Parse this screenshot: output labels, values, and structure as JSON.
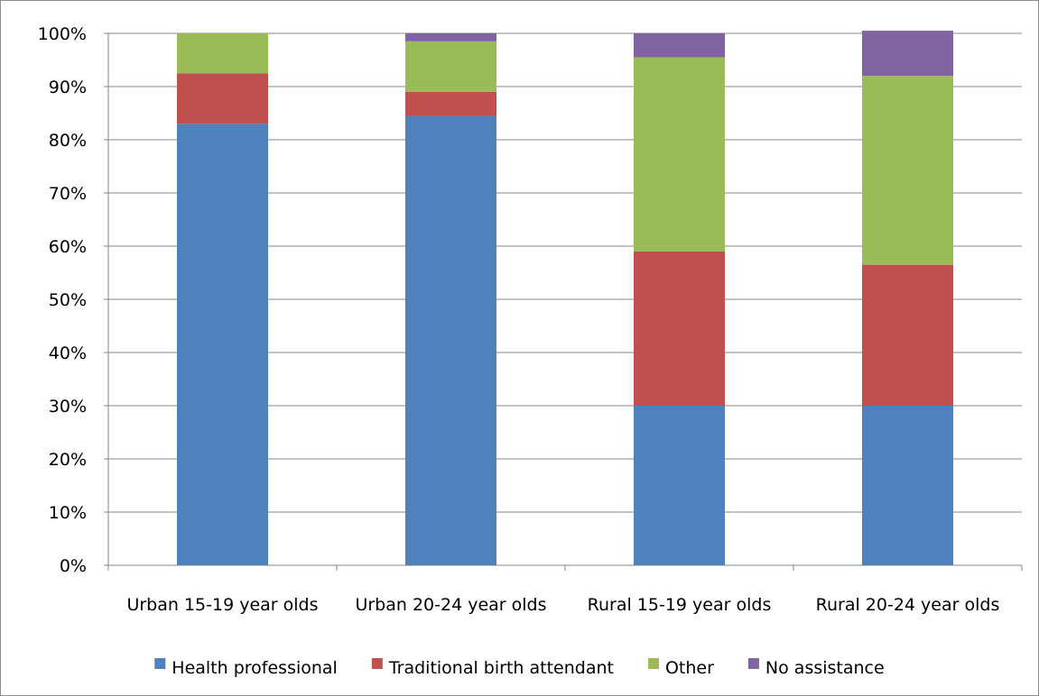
{
  "chart_data": {
    "type": "bar",
    "stacked": true,
    "percent_axis": true,
    "categories": [
      "Urban 15-19 year olds",
      "Urban 20-24 year olds",
      "Rural 15-19 year olds",
      "Rural 20-24 year olds"
    ],
    "series": [
      {
        "name": "Health professional",
        "color": "#4F81BD",
        "values": [
          83,
          84.5,
          30,
          30
        ]
      },
      {
        "name": "Traditional birth attendant",
        "color": "#C0504D",
        "values": [
          9.5,
          4.5,
          29,
          26.5
        ]
      },
      {
        "name": "Other",
        "color": "#9BBB59",
        "values": [
          7.5,
          9.5,
          36.5,
          35.5
        ]
      },
      {
        "name": "No assistance",
        "color": "#8064A2",
        "values": [
          0,
          1.5,
          4.5,
          8.5
        ]
      }
    ],
    "ylim": [
      0,
      100
    ],
    "yticks": [
      "0%",
      "10%",
      "20%",
      "30%",
      "40%",
      "50%",
      "60%",
      "70%",
      "80%",
      "90%",
      "100%"
    ],
    "grid": true,
    "legend": "bottom",
    "title": "",
    "xlabel": "",
    "ylabel": ""
  }
}
